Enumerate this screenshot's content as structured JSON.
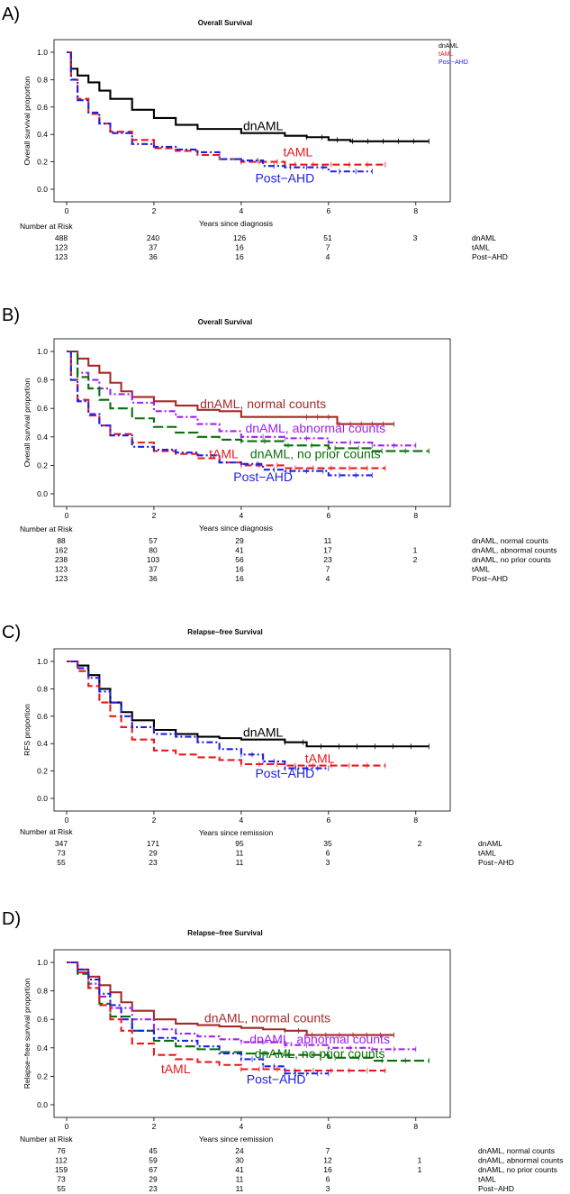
{
  "colors": {
    "dnAML": "#000000",
    "tAML": "#e8191c",
    "Post-AHD": "#1f1fe6",
    "dnAML, normal counts": "#a52a2a",
    "dnAML, abnormal counts": "#a020f0",
    "dnAML, no prior counts": "#0a6e0a"
  },
  "chart_data": [
    {
      "panel_label": "A)",
      "type": "line",
      "title": "Overall Survival",
      "xlabel": "Years since diagnosis",
      "ylabel": "Overall survival proportion",
      "xlim": [
        0,
        8.5
      ],
      "ylim": [
        0,
        1
      ],
      "xticks": [
        0,
        2,
        4,
        6,
        8
      ],
      "yticks": [
        0.0,
        0.2,
        0.4,
        0.6,
        0.8,
        1.0
      ],
      "grid": false,
      "legend": {
        "position": "top-right",
        "entries": [
          "dnAML",
          "tAML",
          "Post−AHD"
        ]
      },
      "series": [
        {
          "name": "dnAML",
          "dash": "solid",
          "x": [
            0,
            0.1,
            0.25,
            0.5,
            0.75,
            1,
            1.5,
            2,
            2.5,
            3,
            4,
            5,
            5.5,
            6,
            6.5,
            7,
            8.3
          ],
          "y": [
            1,
            0.88,
            0.83,
            0.78,
            0.72,
            0.66,
            0.58,
            0.52,
            0.47,
            0.44,
            0.41,
            0.39,
            0.38,
            0.36,
            0.35,
            0.35,
            0.35
          ]
        },
        {
          "name": "tAML",
          "dash": "dashed",
          "x": [
            0,
            0.1,
            0.25,
            0.5,
            0.75,
            1,
            1.5,
            2,
            2.5,
            3,
            3.5,
            4,
            5,
            6,
            7,
            7.3
          ],
          "y": [
            1,
            0.8,
            0.66,
            0.55,
            0.48,
            0.42,
            0.36,
            0.3,
            0.28,
            0.25,
            0.22,
            0.2,
            0.18,
            0.18,
            0.18,
            0.18
          ]
        },
        {
          "name": "Post−AHD",
          "dash": "dotdash",
          "x": [
            0,
            0.1,
            0.25,
            0.5,
            0.75,
            1,
            1.5,
            2,
            2.5,
            3,
            3.5,
            4,
            4.5,
            5,
            6,
            7
          ],
          "y": [
            1,
            0.8,
            0.65,
            0.56,
            0.48,
            0.41,
            0.33,
            0.31,
            0.29,
            0.27,
            0.22,
            0.21,
            0.17,
            0.16,
            0.13,
            0.13
          ]
        }
      ],
      "annotations": [
        {
          "text": "dnAML",
          "x": 4.5,
          "y": 0.43,
          "series": "dnAML"
        },
        {
          "text": "tAML",
          "x": 5.3,
          "y": 0.24,
          "series": "tAML"
        },
        {
          "text": "Post−AHD",
          "x": 5.0,
          "y": 0.05,
          "series": "Post-AHD"
        }
      ],
      "risk_table": {
        "title": "Number at Risk",
        "times": [
          0,
          2,
          4,
          6,
          8
        ],
        "rows": [
          {
            "name": "dnAML",
            "counts": [
              "488",
              "240",
              "126",
              "51",
              "3"
            ]
          },
          {
            "name": "tAML",
            "counts": [
              "123",
              "37",
              "16",
              "7",
              ""
            ]
          },
          {
            "name": "Post−AHD",
            "counts": [
              "123",
              "36",
              "16",
              "4",
              ""
            ]
          }
        ]
      }
    },
    {
      "panel_label": "B)",
      "type": "line",
      "title": "Overall Survival",
      "xlabel": "Years since diagnosis",
      "ylabel": "Overall survival proportion",
      "xlim": [
        0,
        8.5
      ],
      "ylim": [
        0,
        1
      ],
      "xticks": [
        0,
        2,
        4,
        6,
        8
      ],
      "yticks": [
        0.0,
        0.2,
        0.4,
        0.6,
        0.8,
        1.0
      ],
      "grid": false,
      "series": [
        {
          "name": "dnAML, normal counts",
          "dash": "solid",
          "x": [
            0,
            0.25,
            0.5,
            0.75,
            1,
            1.25,
            1.5,
            2,
            2.5,
            3,
            3.5,
            4,
            5,
            5.5,
            6,
            6.2,
            7,
            7.5
          ],
          "y": [
            1,
            0.95,
            0.9,
            0.85,
            0.78,
            0.72,
            0.68,
            0.65,
            0.62,
            0.59,
            0.58,
            0.54,
            0.54,
            0.54,
            0.54,
            0.49,
            0.49,
            0.49
          ]
        },
        {
          "name": "dnAML, abnormal counts",
          "dash": "dashdot",
          "x": [
            0,
            0.25,
            0.5,
            0.75,
            1,
            1.5,
            2,
            2.5,
            3,
            3.5,
            4,
            5,
            6,
            7,
            8
          ],
          "y": [
            1,
            0.85,
            0.8,
            0.74,
            0.7,
            0.64,
            0.58,
            0.54,
            0.49,
            0.44,
            0.4,
            0.39,
            0.36,
            0.34,
            0.34
          ]
        },
        {
          "name": "dnAML, no prior counts",
          "dash": "longdash",
          "x": [
            0,
            0.25,
            0.5,
            0.75,
            1,
            1.5,
            2,
            2.5,
            3,
            3.5,
            4,
            5,
            6,
            7,
            8.3
          ],
          "y": [
            1,
            0.82,
            0.74,
            0.66,
            0.6,
            0.53,
            0.47,
            0.43,
            0.4,
            0.38,
            0.37,
            0.34,
            0.32,
            0.3,
            0.3
          ]
        },
        {
          "name": "tAML",
          "dash": "dashed",
          "x": [
            0,
            0.1,
            0.25,
            0.5,
            0.75,
            1,
            1.5,
            2,
            2.5,
            3,
            3.5,
            4,
            5,
            6,
            7,
            7.3
          ],
          "y": [
            1,
            0.8,
            0.66,
            0.55,
            0.48,
            0.42,
            0.36,
            0.3,
            0.28,
            0.25,
            0.22,
            0.2,
            0.18,
            0.18,
            0.18,
            0.18
          ]
        },
        {
          "name": "Post−AHD",
          "dash": "dotdash",
          "x": [
            0,
            0.1,
            0.25,
            0.5,
            0.75,
            1,
            1.5,
            2,
            2.5,
            3,
            3.5,
            4,
            4.5,
            5,
            6,
            7
          ],
          "y": [
            1,
            0.8,
            0.65,
            0.56,
            0.48,
            0.41,
            0.33,
            0.31,
            0.29,
            0.27,
            0.22,
            0.21,
            0.17,
            0.16,
            0.13,
            0.13
          ]
        }
      ],
      "annotations": [
        {
          "text": "dnAML, normal counts",
          "x": 4.5,
          "y": 0.6,
          "series": "dnAML, normal counts"
        },
        {
          "text": "dnAML, abnormal counts",
          "x": 5.7,
          "y": 0.43,
          "series": "dnAML, abnormal counts"
        },
        {
          "text": "dnAML, no prior counts",
          "x": 5.7,
          "y": 0.25,
          "series": "dnAML, no prior counts"
        },
        {
          "text": "tAML",
          "x": 3.6,
          "y": 0.25,
          "series": "tAML"
        },
        {
          "text": "Post−AHD",
          "x": 4.5,
          "y": 0.09,
          "series": "Post-AHD"
        }
      ],
      "risk_table": {
        "title": "Number at Risk",
        "times": [
          0,
          2,
          4,
          6,
          8
        ],
        "rows": [
          {
            "name": "dnAML, normal counts",
            "counts": [
              "88",
              "57",
              "29",
              "11",
              ""
            ]
          },
          {
            "name": "dnAML, abnormal counts",
            "counts": [
              "162",
              "80",
              "41",
              "17",
              "1"
            ]
          },
          {
            "name": "dnAML, no prior counts",
            "counts": [
              "238",
              "103",
              "56",
              "23",
              "2"
            ]
          },
          {
            "name": "tAML",
            "counts": [
              "123",
              "37",
              "16",
              "7",
              ""
            ]
          },
          {
            "name": "Post−AHD",
            "counts": [
              "123",
              "36",
              "16",
              "4",
              ""
            ]
          }
        ]
      }
    },
    {
      "panel_label": "C)",
      "type": "line",
      "title": "Relapse−free Survival",
      "xlabel": "Years since remission",
      "ylabel": "RFS proportion",
      "xlim": [
        0,
        8.5
      ],
      "ylim": [
        0,
        1
      ],
      "xticks": [
        0,
        2,
        4,
        6,
        8
      ],
      "yticks": [
        0.0,
        0.2,
        0.4,
        0.6,
        0.8,
        1.0
      ],
      "grid": false,
      "series": [
        {
          "name": "dnAML",
          "dash": "solid",
          "x": [
            0,
            0.25,
            0.5,
            0.75,
            1,
            1.25,
            1.5,
            2,
            2.5,
            3,
            3.5,
            4,
            5,
            5.5,
            6,
            7,
            8.3
          ],
          "y": [
            1,
            0.97,
            0.9,
            0.8,
            0.7,
            0.63,
            0.57,
            0.5,
            0.47,
            0.45,
            0.44,
            0.43,
            0.41,
            0.38,
            0.38,
            0.38,
            0.38
          ]
        },
        {
          "name": "tAML",
          "dash": "dashed",
          "x": [
            0,
            0.25,
            0.5,
            0.75,
            1,
            1.25,
            1.5,
            2,
            2.5,
            3,
            3.5,
            4,
            5,
            6,
            7,
            7.3
          ],
          "y": [
            1,
            0.93,
            0.82,
            0.7,
            0.6,
            0.52,
            0.43,
            0.35,
            0.32,
            0.3,
            0.28,
            0.25,
            0.24,
            0.24,
            0.24,
            0.24
          ]
        },
        {
          "name": "Post−AHD",
          "dash": "dotdash",
          "x": [
            0,
            0.25,
            0.5,
            0.75,
            1,
            1.25,
            1.5,
            2,
            2.5,
            3,
            3.5,
            4,
            4.5,
            5,
            5.5,
            6
          ],
          "y": [
            1,
            0.95,
            0.88,
            0.78,
            0.7,
            0.6,
            0.52,
            0.47,
            0.45,
            0.41,
            0.36,
            0.32,
            0.27,
            0.22,
            0.22,
            0.22
          ]
        }
      ],
      "annotations": [
        {
          "text": "dnAML",
          "x": 4.5,
          "y": 0.45,
          "series": "dnAML"
        },
        {
          "text": "tAML",
          "x": 5.8,
          "y": 0.26,
          "series": "tAML"
        },
        {
          "text": "Post−AHD",
          "x": 5.0,
          "y": 0.15,
          "series": "Post-AHD"
        }
      ],
      "risk_table": {
        "title": "Number at Risk",
        "times": [
          0,
          2,
          4,
          6,
          8
        ],
        "rows": [
          {
            "name": "dnAML",
            "counts": [
              "347",
              "171",
              "95",
              "35",
              "2"
            ]
          },
          {
            "name": "tAML",
            "counts": [
              "73",
              "29",
              "11",
              "6",
              ""
            ]
          },
          {
            "name": "Post−AHD",
            "counts": [
              "55",
              "23",
              "11",
              "3",
              ""
            ]
          }
        ]
      }
    },
    {
      "panel_label": "D)",
      "type": "line",
      "title": "Relapse−free Survival",
      "xlabel": "Years since remission",
      "ylabel": "Relapse−free survival proportion",
      "xlim": [
        0,
        8.5
      ],
      "ylim": [
        0,
        1
      ],
      "xticks": [
        0,
        2,
        4,
        6,
        8
      ],
      "yticks": [
        0.0,
        0.2,
        0.4,
        0.6,
        0.8,
        1.0
      ],
      "grid": false,
      "series": [
        {
          "name": "dnAML, normal counts",
          "dash": "solid",
          "x": [
            0,
            0.25,
            0.5,
            0.75,
            1,
            1.25,
            1.5,
            2,
            2.5,
            3,
            3.5,
            4,
            4.5,
            5,
            5.5,
            6,
            7,
            7.5
          ],
          "y": [
            1,
            0.95,
            0.9,
            0.84,
            0.79,
            0.72,
            0.66,
            0.6,
            0.57,
            0.56,
            0.55,
            0.54,
            0.53,
            0.52,
            0.49,
            0.49,
            0.49,
            0.49
          ]
        },
        {
          "name": "dnAML, abnormal counts",
          "dash": "dashdot",
          "x": [
            0,
            0.25,
            0.5,
            0.75,
            1,
            1.5,
            2,
            2.5,
            3,
            3.5,
            4,
            5,
            6,
            7,
            8
          ],
          "y": [
            1,
            0.93,
            0.85,
            0.76,
            0.68,
            0.6,
            0.53,
            0.5,
            0.48,
            0.46,
            0.44,
            0.42,
            0.4,
            0.39,
            0.39
          ]
        },
        {
          "name": "dnAML, no prior counts",
          "dash": "longdash",
          "x": [
            0,
            0.25,
            0.5,
            0.75,
            1,
            1.5,
            2,
            2.5,
            3,
            3.5,
            4,
            5,
            6,
            7,
            8.3
          ],
          "y": [
            1,
            0.92,
            0.82,
            0.71,
            0.62,
            0.52,
            0.45,
            0.41,
            0.39,
            0.37,
            0.36,
            0.35,
            0.33,
            0.31,
            0.31
          ]
        },
        {
          "name": "tAML",
          "dash": "dashed",
          "x": [
            0,
            0.25,
            0.5,
            0.75,
            1,
            1.25,
            1.5,
            2,
            2.5,
            3,
            3.5,
            4,
            5,
            6,
            7,
            7.3
          ],
          "y": [
            1,
            0.93,
            0.82,
            0.7,
            0.6,
            0.52,
            0.43,
            0.35,
            0.32,
            0.3,
            0.28,
            0.25,
            0.24,
            0.24,
            0.24,
            0.24
          ]
        },
        {
          "name": "Post−AHD",
          "dash": "dotdash",
          "x": [
            0,
            0.25,
            0.5,
            0.75,
            1,
            1.25,
            1.5,
            2,
            2.5,
            3,
            3.5,
            4,
            4.5,
            5,
            5.5,
            6
          ],
          "y": [
            1,
            0.95,
            0.88,
            0.78,
            0.7,
            0.6,
            0.52,
            0.47,
            0.45,
            0.41,
            0.36,
            0.32,
            0.27,
            0.22,
            0.22,
            0.22
          ]
        }
      ],
      "annotations": [
        {
          "text": "dnAML, normal counts",
          "x": 4.6,
          "y": 0.58,
          "series": "dnAML, normal counts"
        },
        {
          "text": "dnAML, abnormal counts",
          "x": 5.8,
          "y": 0.43,
          "series": "dnAML, abnormal counts"
        },
        {
          "text": "dnAML, no prior counts",
          "x": 5.8,
          "y": 0.33,
          "series": "dnAML, no prior counts"
        },
        {
          "text": "tAML",
          "x": 2.5,
          "y": 0.22,
          "series": "tAML"
        },
        {
          "text": "Post−AHD",
          "x": 4.8,
          "y": 0.15,
          "series": "Post-AHD"
        }
      ],
      "risk_table": {
        "title": "Number at Risk",
        "times": [
          0,
          2,
          4,
          6,
          8
        ],
        "rows": [
          {
            "name": "dnAML, normal counts",
            "counts": [
              "76",
              "45",
              "24",
              "7",
              ""
            ]
          },
          {
            "name": "dnAML, abnormal counts",
            "counts": [
              "112",
              "59",
              "30",
              "12",
              "1"
            ]
          },
          {
            "name": "dnAML, no prior counts",
            "counts": [
              "159",
              "67",
              "41",
              "16",
              "1"
            ]
          },
          {
            "name": "tAML",
            "counts": [
              "73",
              "29",
              "11",
              "6",
              ""
            ]
          },
          {
            "name": "Post−AHD",
            "counts": [
              "55",
              "23",
              "11",
              "3",
              ""
            ]
          }
        ]
      }
    }
  ]
}
